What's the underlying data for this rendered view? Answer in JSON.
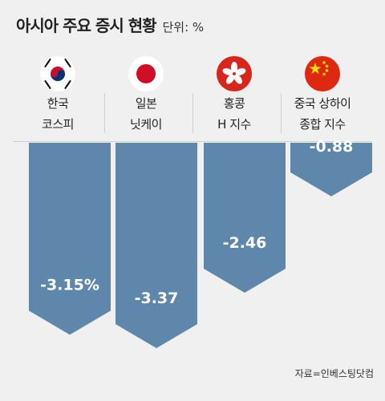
{
  "header": {
    "title": "아시아 주요 증시 현황",
    "unit": "단위: %"
  },
  "source": "자료=인베스팅닷컴",
  "colors": {
    "bar": "#5f87ab",
    "label_text": "#ffffff",
    "background": "#f0f0f0"
  },
  "columns": [
    {
      "name_line1": "한국",
      "name_line2": "코스피",
      "flag": "south-korea-flag-icon"
    },
    {
      "name_line1": "일본",
      "name_line2": "닛케이",
      "flag": "japan-flag-icon"
    },
    {
      "name_line1": "홍콩",
      "name_line2": "H 지수",
      "flag": "hong-kong-flag-icon"
    },
    {
      "name_line1": "중국 상하이",
      "name_line2": "종합 지수",
      "flag": "china-flag-icon"
    }
  ],
  "chart_data": {
    "type": "bar",
    "title": "아시아 주요 증시 현황",
    "unit": "%",
    "categories": [
      "한국 코스피",
      "일본 닛케이",
      "홍콩 H 지수",
      "중국 상하이 종합 지수"
    ],
    "values": [
      -3.15,
      -3.37,
      -2.46,
      -0.88
    ],
    "value_labels": [
      "-3.15%",
      "-3.37",
      "-2.46",
      "-0.88"
    ]
  }
}
